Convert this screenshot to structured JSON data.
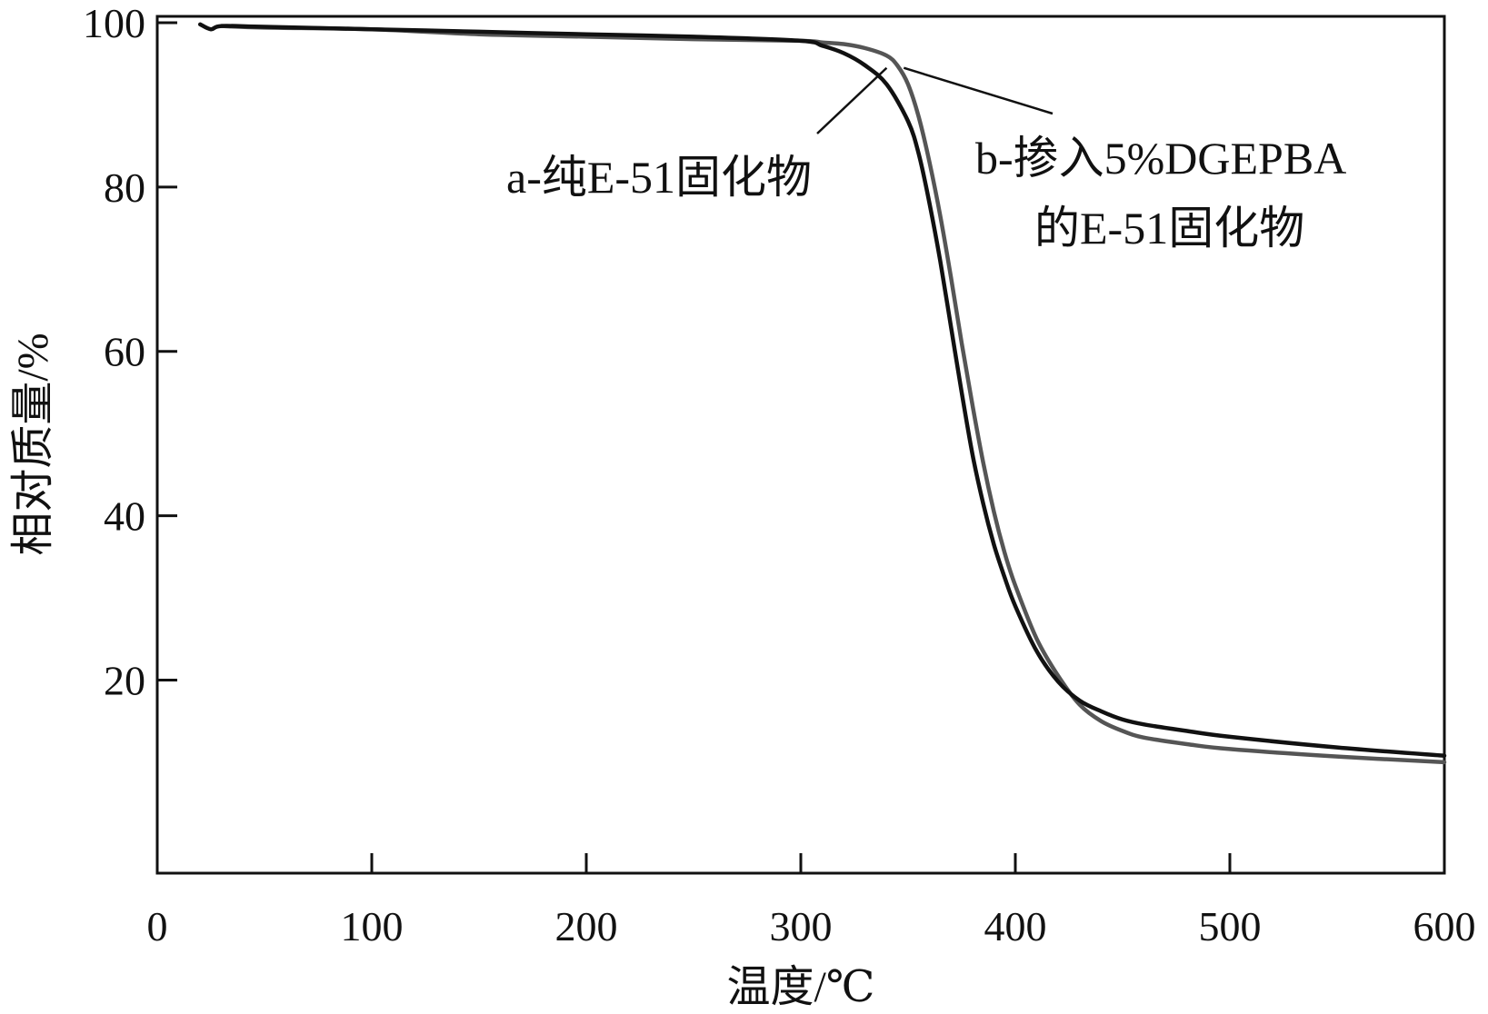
{
  "chart_data": {
    "type": "line",
    "title": "",
    "xlabel": "温度/℃",
    "ylabel": "相对质量/%",
    "xlim": [
      0,
      600
    ],
    "ylim": [
      0,
      100
    ],
    "xticks": [
      0,
      100,
      200,
      300,
      400,
      500,
      600
    ],
    "yticks": [
      20,
      40,
      60,
      80,
      100
    ],
    "xtick_labels": [
      "0",
      "100",
      "200",
      "300",
      "400",
      "500",
      "600"
    ],
    "ytick_labels": [
      "20",
      "40",
      "60",
      "80",
      "100"
    ],
    "grid": false,
    "series": [
      {
        "name": "a-纯E-51固化物",
        "color": "#111111",
        "x": [
          20,
          25,
          30,
          50,
          100,
          150,
          200,
          250,
          300,
          310,
          320,
          330,
          340,
          350,
          355,
          360,
          365,
          370,
          375,
          380,
          385,
          390,
          395,
          400,
          410,
          420,
          430,
          440,
          450,
          460,
          480,
          500,
          550,
          600
        ],
        "y": [
          99.8,
          99.2,
          99.6,
          99.5,
          99.2,
          98.9,
          98.6,
          98.3,
          97.8,
          97.2,
          96.3,
          94.8,
          92.5,
          88.0,
          84.0,
          78.0,
          71.0,
          63.0,
          55.0,
          47.5,
          41.5,
          36.5,
          32.5,
          29.0,
          23.5,
          19.8,
          17.5,
          16.2,
          15.2,
          14.6,
          13.8,
          13.1,
          11.8,
          10.8
        ]
      },
      {
        "name": "b-掺入5%DGEPBA的E-51固化物",
        "color": "#555555",
        "x": [
          30,
          50,
          100,
          150,
          200,
          250,
          300,
          310,
          320,
          330,
          340,
          345,
          350,
          355,
          360,
          365,
          370,
          375,
          380,
          385,
          390,
          395,
          400,
          410,
          420,
          430,
          440,
          450,
          460,
          480,
          500,
          550,
          600
        ],
        "y": [
          99.6,
          99.4,
          99.2,
          98.6,
          98.3,
          98.0,
          97.8,
          97.6,
          97.4,
          96.9,
          96.0,
          94.8,
          92.5,
          88.5,
          83.0,
          76.5,
          69.0,
          61.0,
          53.5,
          46.5,
          40.5,
          35.5,
          31.5,
          25.0,
          20.5,
          17.0,
          15.0,
          13.8,
          13.0,
          12.2,
          11.6,
          10.7,
          10.0
        ]
      }
    ],
    "annotations": [
      {
        "text": "a-纯E-51固化物",
        "points_to": {
          "x": 340,
          "y": 94.5
        }
      },
      {
        "text_lines": [
          "b-掺入5%DGEPBA",
          "的E-51固化物"
        ],
        "points_to": {
          "x": 348,
          "y": 94.5
        }
      }
    ]
  }
}
